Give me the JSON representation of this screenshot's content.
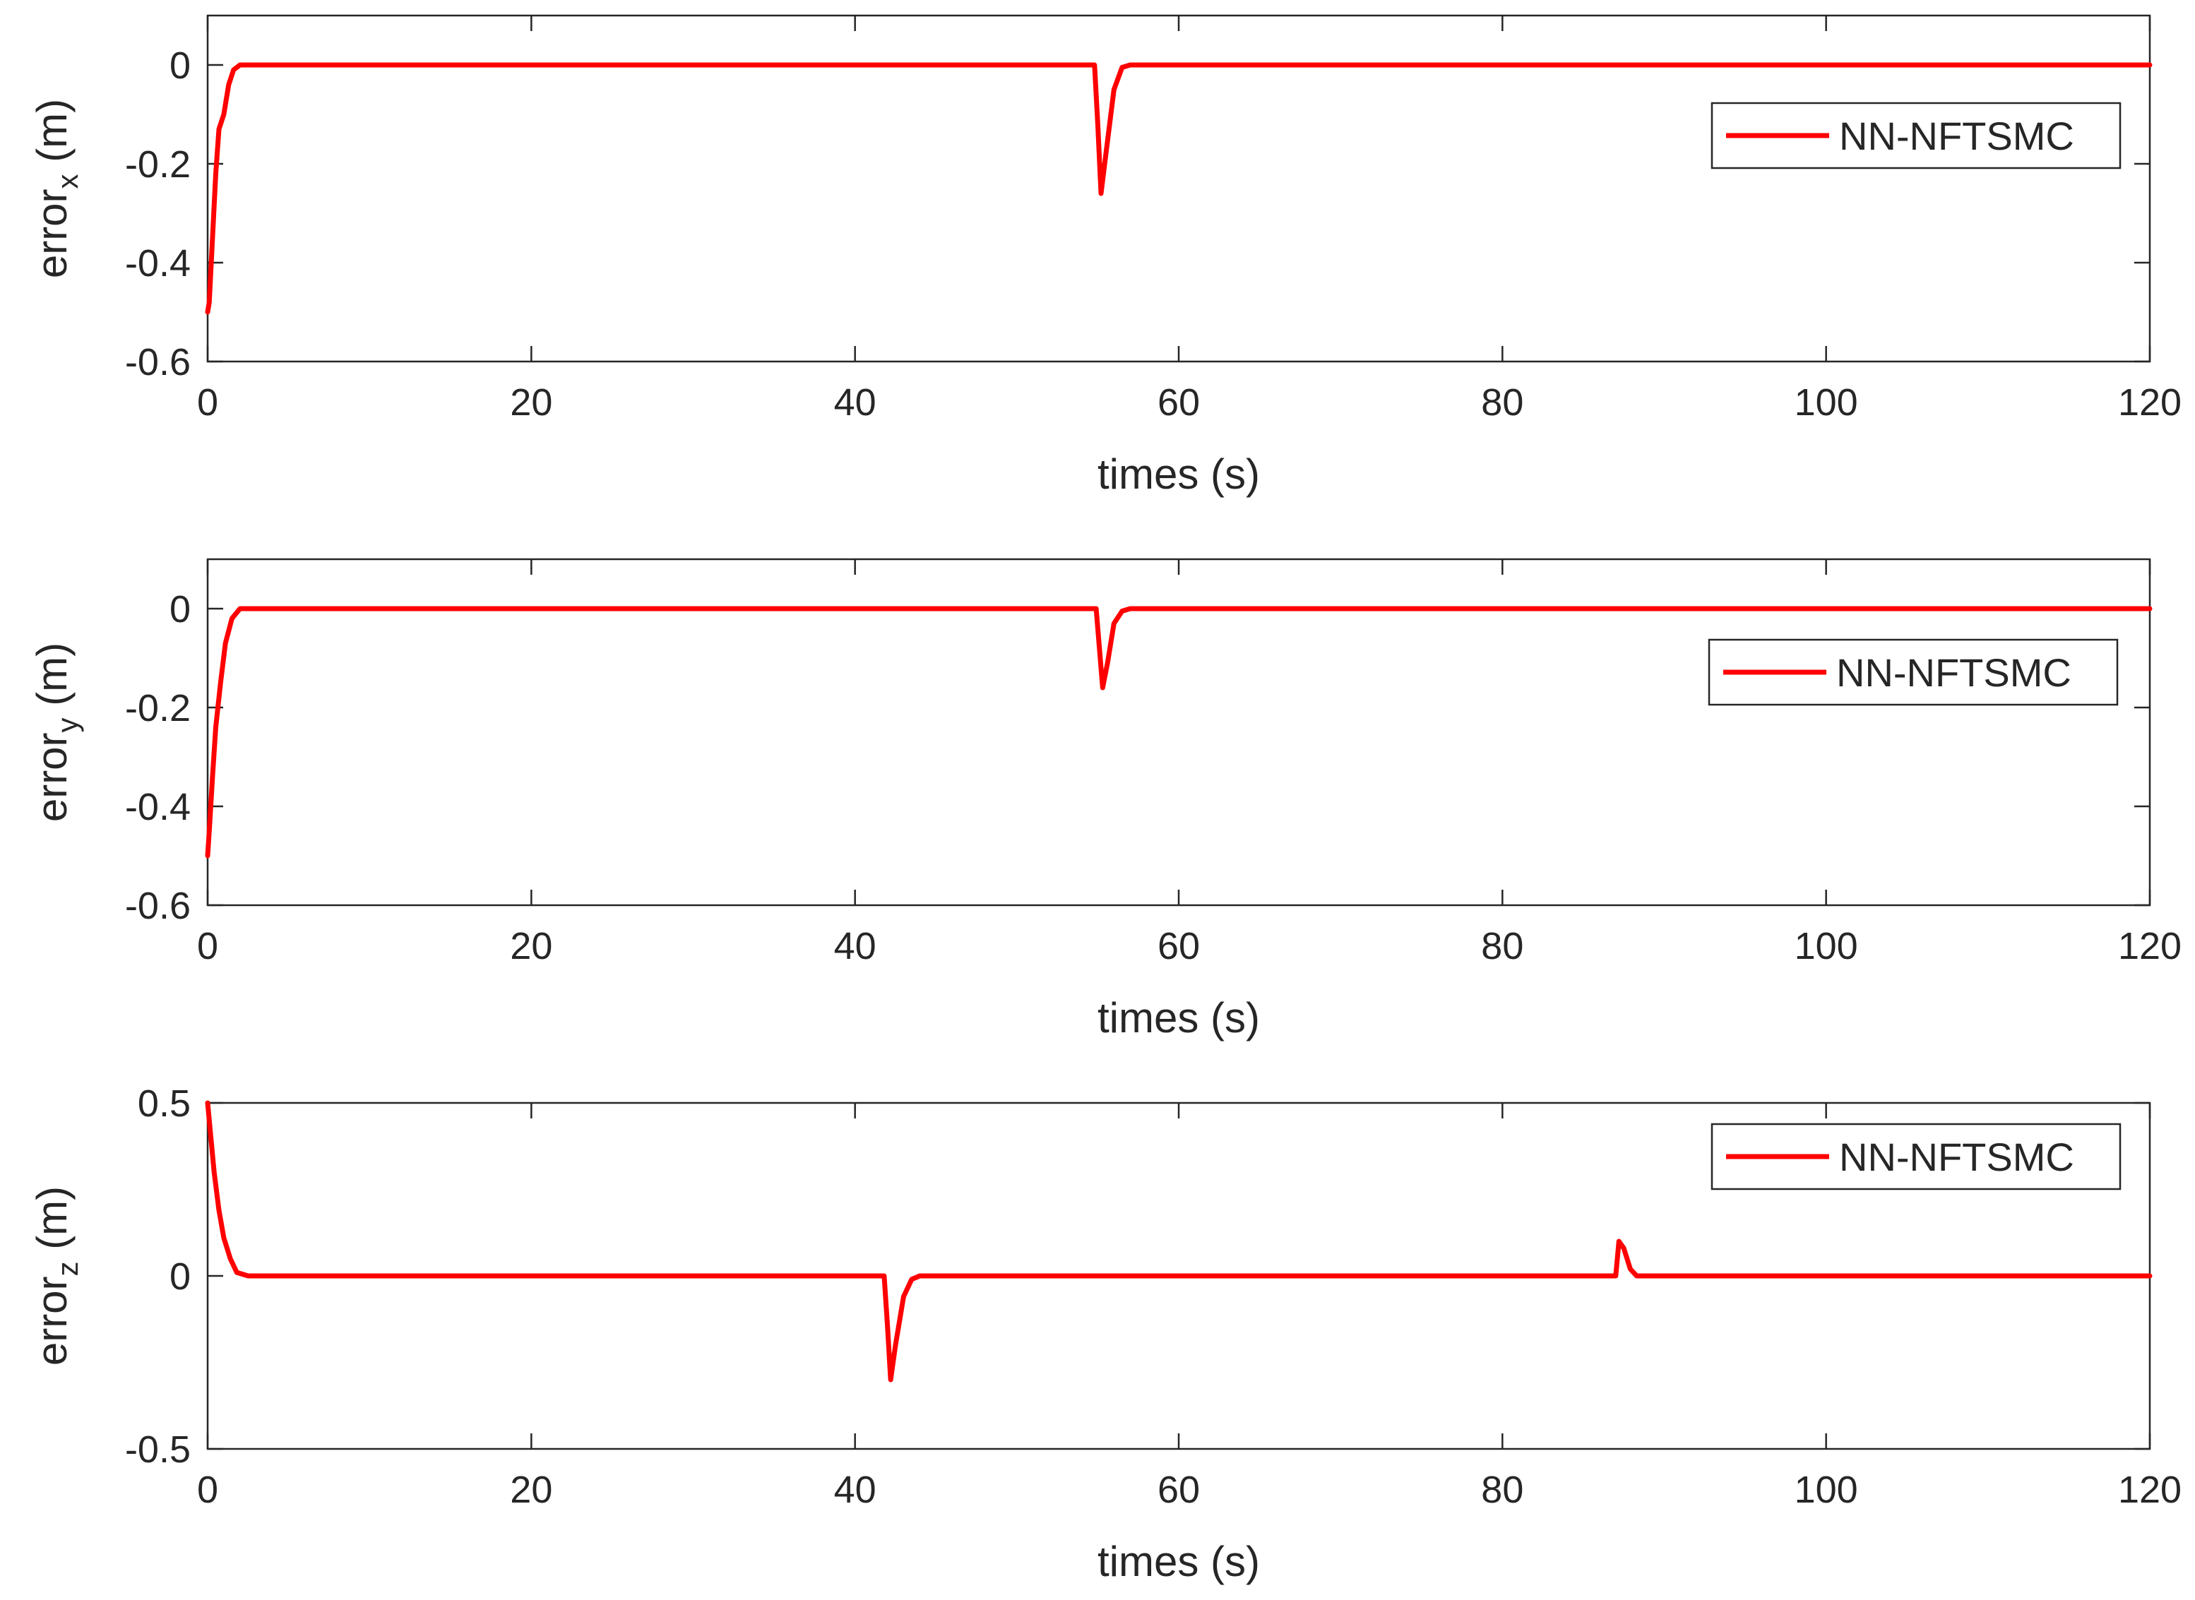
{
  "chart_data": [
    {
      "type": "line",
      "xlabel": "times (s)",
      "ylabel": {
        "base": "error",
        "sub": "x",
        "unit": " (m)"
      },
      "xlim": [
        0,
        120
      ],
      "ylim": [
        -0.6,
        0.1
      ],
      "xticks": [
        0,
        20,
        40,
        60,
        80,
        100,
        120
      ],
      "yticks": [
        -0.6,
        -0.4,
        -0.2,
        0
      ],
      "ytick_labels": [
        "-0.6",
        "-0.4",
        "-0.2",
        "0"
      ],
      "legend": "NN-NFTSMC",
      "legend_position": "upper-right",
      "grid": false,
      "series": [
        {
          "name": "NN-NFTSMC",
          "color": "#ff0000",
          "x": [
            0,
            0.1,
            0.3,
            0.5,
            0.7,
            1.0,
            1.3,
            1.6,
            2.0,
            3.0,
            54.8,
            55.0,
            55.2,
            55.5,
            56.0,
            56.5,
            57.0,
            120
          ],
          "y": [
            -0.5,
            -0.48,
            -0.35,
            -0.22,
            -0.13,
            -0.1,
            -0.04,
            -0.01,
            0,
            0,
            0,
            -0.12,
            -0.26,
            -0.18,
            -0.05,
            -0.005,
            0,
            0
          ]
        }
      ]
    },
    {
      "type": "line",
      "xlabel": "times (s)",
      "ylabel": {
        "base": "error",
        "sub": "y",
        "unit": " (m)"
      },
      "xlim": [
        0,
        120
      ],
      "ylim": [
        -0.6,
        0.1
      ],
      "xticks": [
        0,
        20,
        40,
        60,
        80,
        100,
        120
      ],
      "yticks": [
        -0.6,
        -0.4,
        -0.2,
        0
      ],
      "ytick_labels": [
        "-0.6",
        "-0.4",
        "-0.2",
        "0"
      ],
      "legend": "NN-NFTSMC",
      "legend_position": "upper-right",
      "grid": false,
      "series": [
        {
          "name": "NN-NFTSMC",
          "color": "#ff0000",
          "x": [
            0,
            0.1,
            0.3,
            0.5,
            0.8,
            1.1,
            1.5,
            2.0,
            3.0,
            54.9,
            55.1,
            55.3,
            55.6,
            56.0,
            56.5,
            57.0,
            120
          ],
          "y": [
            -0.5,
            -0.45,
            -0.34,
            -0.24,
            -0.15,
            -0.07,
            -0.02,
            0,
            0,
            0,
            -0.08,
            -0.16,
            -0.11,
            -0.03,
            -0.005,
            0,
            0
          ]
        }
      ]
    },
    {
      "type": "line",
      "xlabel": "times (s)",
      "ylabel": {
        "base": "error",
        "sub": "z",
        "unit": " (m)"
      },
      "xlim": [
        0,
        120
      ],
      "ylim": [
        -0.5,
        0.5
      ],
      "xticks": [
        0,
        20,
        40,
        60,
        80,
        100,
        120
      ],
      "yticks": [
        -0.5,
        0,
        0.5
      ],
      "ytick_labels": [
        "-0.5",
        "0",
        "0.5"
      ],
      "legend": "NN-NFTSMC",
      "legend_position": "upper-right",
      "grid": false,
      "series": [
        {
          "name": "NN-NFTSMC",
          "color": "#ff0000",
          "x": [
            0,
            0.2,
            0.4,
            0.7,
            1.0,
            1.4,
            1.8,
            2.5,
            41.8,
            42.0,
            42.2,
            42.5,
            43.0,
            43.5,
            44.0,
            87.0,
            87.2,
            87.5,
            87.9,
            88.3,
            120
          ],
          "y": [
            0.5,
            0.4,
            0.3,
            0.19,
            0.11,
            0.05,
            0.01,
            0,
            0,
            -0.14,
            -0.3,
            -0.2,
            -0.06,
            -0.01,
            0,
            0,
            0.1,
            0.08,
            0.02,
            0,
            0
          ]
        }
      ]
    }
  ]
}
